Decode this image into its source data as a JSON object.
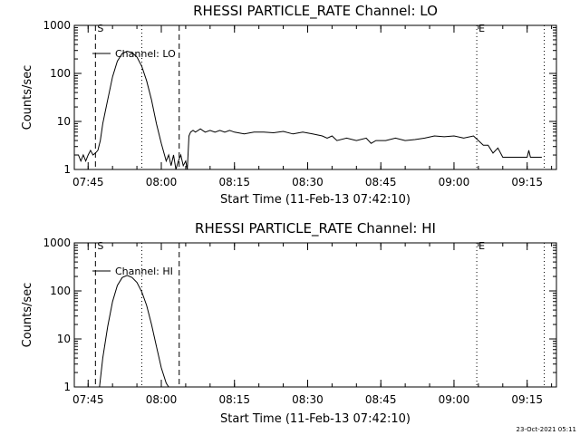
{
  "chart_data": [
    {
      "type": "line",
      "title": "RHESSI PARTICLE_RATE Channel: LO",
      "xlabel": "Start Time (11-Feb-13 07:42:10)",
      "ylabel": "Counts/sec",
      "y_scale": "log",
      "ylim": [
        1,
        1000
      ],
      "xlim": [
        "07:42:10",
        "09:21:00"
      ],
      "x_ticks": [
        "07:45",
        "08:00",
        "08:15",
        "08:30",
        "08:45",
        "09:00",
        "09:15"
      ],
      "y_ticks": [
        "1",
        "10",
        "100",
        "1000"
      ],
      "grid": false,
      "legend": {
        "position": "top-left",
        "entries": [
          "Channel: LO"
        ]
      },
      "markers": [
        {
          "label": "S",
          "time": "07:46:30",
          "style": "dashed"
        },
        {
          "label": "",
          "time": "07:56:00",
          "style": "dotted"
        },
        {
          "label": "",
          "time": "08:03:40",
          "style": "dashed"
        },
        {
          "label": "E",
          "time": "09:04:40",
          "style": "dotted"
        },
        {
          "label": "",
          "time": "09:18:30",
          "style": "dotted"
        }
      ],
      "series": [
        {
          "name": "Channel: LO",
          "x": [
            "07:42:10",
            "07:43:00",
            "07:43:30",
            "07:44:00",
            "07:44:30",
            "07:45:00",
            "07:45:30",
            "07:46:00",
            "07:46:30",
            "07:47:00",
            "07:47:30",
            "07:48:00",
            "07:49:00",
            "07:50:00",
            "07:51:00",
            "07:52:00",
            "07:53:00",
            "07:54:00",
            "07:55:00",
            "07:56:00",
            "07:57:00",
            "07:58:00",
            "07:59:00",
            "08:00:00",
            "08:01:00",
            "08:01:30",
            "08:02:00",
            "08:02:30",
            "08:03:00",
            "08:03:30",
            "08:04:00",
            "08:04:30",
            "08:05:00",
            "08:05:20",
            "08:05:40",
            "08:06:00",
            "08:06:30",
            "08:07:00",
            "08:08:00",
            "08:09:00",
            "08:10:00",
            "08:11:00",
            "08:12:00",
            "08:13:00",
            "08:14:00",
            "08:15:00",
            "08:17:00",
            "08:19:00",
            "08:21:00",
            "08:23:00",
            "08:25:00",
            "08:27:00",
            "08:29:00",
            "08:31:00",
            "08:33:00",
            "08:34:00",
            "08:35:00",
            "08:36:00",
            "08:38:00",
            "08:40:00",
            "08:42:00",
            "08:43:00",
            "08:44:00",
            "08:46:00",
            "08:48:00",
            "08:50:00",
            "08:52:00",
            "08:54:00",
            "08:56:00",
            "08:58:00",
            "09:00:00",
            "09:02:00",
            "09:04:00",
            "09:05:00",
            "09:06:00",
            "09:07:00",
            "09:08:00",
            "09:09:00",
            "09:10:00",
            "09:12:00",
            "09:14:00",
            "09:15:00",
            "09:15:20",
            "09:15:40",
            "09:17:00",
            "09:18:00"
          ],
          "values": [
            2,
            2,
            1.5,
            2,
            1.5,
            2,
            2.5,
            2,
            2.2,
            2.5,
            4,
            9,
            28,
            85,
            180,
            260,
            290,
            270,
            220,
            140,
            70,
            28,
            9,
            3.5,
            1.5,
            2,
            1.2,
            2,
            1,
            1.5,
            2,
            1.2,
            1.5,
            1,
            5,
            6,
            6.5,
            6,
            7,
            6,
            6.5,
            6,
            6.5,
            6,
            6.5,
            6,
            5.5,
            6,
            6,
            5.8,
            6.2,
            5.5,
            6,
            5.5,
            5,
            4.5,
            5,
            4,
            4.5,
            4,
            4.5,
            3.5,
            4,
            4,
            4.5,
            4,
            4.2,
            4.5,
            5,
            4.8,
            5,
            4.5,
            5,
            4,
            3.2,
            3.2,
            2.2,
            2.8,
            1.8,
            1.8,
            1.8,
            1.8,
            2.5,
            1.8,
            1.8,
            1.8
          ]
        }
      ]
    },
    {
      "type": "line",
      "title": "RHESSI PARTICLE_RATE Channel: HI",
      "xlabel": "Start Time (11-Feb-13 07:42:10)",
      "ylabel": "Counts/sec",
      "y_scale": "log",
      "ylim": [
        1,
        1000
      ],
      "xlim": [
        "07:42:10",
        "09:21:00"
      ],
      "x_ticks": [
        "07:45",
        "08:00",
        "08:15",
        "08:30",
        "08:45",
        "09:00",
        "09:15"
      ],
      "y_ticks": [
        "1",
        "10",
        "100",
        "1000"
      ],
      "grid": false,
      "legend": {
        "position": "top-left",
        "entries": [
          "Channel: HI"
        ]
      },
      "markers": [
        {
          "label": "S",
          "time": "07:46:30",
          "style": "dashed"
        },
        {
          "label": "",
          "time": "07:56:00",
          "style": "dotted"
        },
        {
          "label": "",
          "time": "08:03:40",
          "style": "dashed"
        },
        {
          "label": "E",
          "time": "09:04:40",
          "style": "dotted"
        },
        {
          "label": "",
          "time": "09:18:30",
          "style": "dotted"
        }
      ],
      "series": [
        {
          "name": "Channel: HI",
          "x": [
            "07:47:20",
            "07:48:00",
            "07:49:00",
            "07:50:00",
            "07:51:00",
            "07:52:00",
            "07:53:00",
            "07:54:00",
            "07:55:00",
            "07:56:00",
            "07:57:00",
            "07:58:00",
            "07:59:00",
            "08:00:00",
            "08:01:00",
            "08:01:30"
          ],
          "values": [
            1,
            4,
            18,
            60,
            130,
            190,
            210,
            190,
            150,
            95,
            50,
            20,
            7,
            2.5,
            1.2,
            1
          ]
        }
      ]
    }
  ],
  "timestamp": "23-Oct-2021 05:11"
}
